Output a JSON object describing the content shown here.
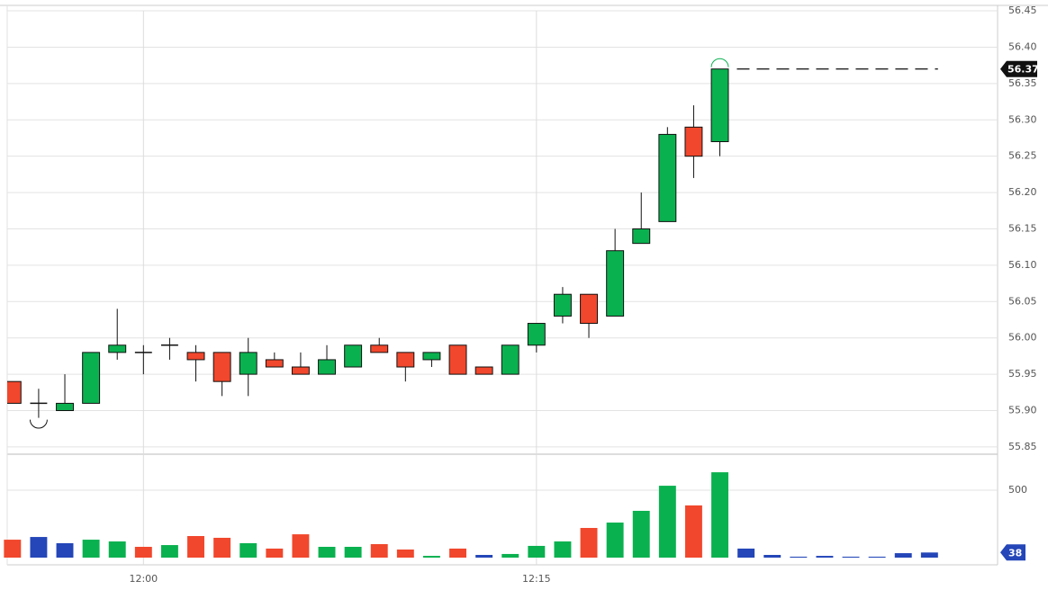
{
  "chart_data": {
    "type": "candlestick",
    "grid": true,
    "xlim": [
      -0.2,
      37.6
    ],
    "xticks": [
      {
        "value": 5,
        "label": "12:00"
      },
      {
        "value": 20,
        "label": "12:15"
      }
    ],
    "ylim": [
      55.84,
      56.455
    ],
    "yticks": [
      55.85,
      {
        "value": 55.9,
        "label": "55.90"
      },
      55.95,
      {
        "value": 56.0,
        "label": "56.00"
      },
      56.05,
      {
        "value": 56.1,
        "label": "56.10"
      },
      56.15,
      {
        "value": 56.2,
        "label": "56.20"
      },
      56.25,
      {
        "value": 56.3,
        "label": "56.30"
      },
      56.35,
      {
        "value": 56.4,
        "label": "56.40"
      },
      56.45
    ],
    "candles": {
      "up_color": "#0ab14f",
      "down_color": "#f1472c",
      "x": [
        0,
        1,
        2,
        3,
        4,
        5,
        6,
        7,
        8,
        9,
        10,
        11,
        12,
        13,
        14,
        15,
        16,
        17,
        18,
        19,
        20,
        21,
        22,
        23,
        24,
        25,
        26,
        27
      ],
      "open": [
        55.94,
        55.91,
        55.9,
        55.91,
        55.98,
        55.98,
        55.99,
        55.98,
        55.98,
        55.95,
        55.97,
        55.96,
        55.95,
        55.96,
        55.99,
        55.98,
        55.97,
        55.99,
        55.96,
        55.95,
        55.99,
        56.03,
        56.06,
        56.03,
        56.13,
        56.16,
        56.29,
        56.27
      ],
      "high": [
        55.94,
        55.93,
        55.95,
        55.98,
        56.04,
        55.99,
        56.0,
        55.99,
        55.98,
        56.0,
        55.98,
        55.98,
        55.99,
        55.99,
        56.0,
        55.98,
        55.98,
        55.99,
        55.96,
        55.99,
        56.02,
        56.07,
        56.06,
        56.15,
        56.2,
        56.29,
        56.32,
        56.37
      ],
      "low": [
        55.91,
        55.89,
        55.9,
        55.91,
        55.97,
        55.95,
        55.97,
        55.94,
        55.92,
        55.92,
        55.96,
        55.95,
        55.95,
        55.96,
        55.98,
        55.94,
        55.96,
        55.95,
        55.95,
        55.95,
        55.98,
        56.02,
        56.0,
        56.03,
        56.13,
        56.16,
        56.22,
        56.25
      ],
      "close": [
        55.91,
        55.91,
        55.91,
        55.98,
        55.99,
        55.98,
        55.99,
        55.97,
        55.94,
        55.98,
        55.96,
        55.95,
        55.97,
        55.99,
        55.98,
        55.96,
        55.98,
        55.95,
        55.95,
        55.99,
        56.02,
        56.06,
        56.02,
        56.12,
        56.15,
        56.28,
        56.25,
        56.37
      ]
    },
    "volume": {
      "ylim": [
        0,
        767
      ],
      "yticks": [
        500
      ],
      "x": [
        0,
        1,
        2,
        3,
        4,
        5,
        6,
        7,
        8,
        9,
        10,
        11,
        12,
        13,
        14,
        15,
        16,
        17,
        18,
        19,
        20,
        21,
        22,
        23,
        24,
        25,
        26,
        27,
        28,
        29,
        30,
        31,
        32,
        33,
        34,
        35
      ],
      "values": [
        133,
        153,
        107,
        133,
        120,
        80,
        93,
        160,
        147,
        107,
        67,
        173,
        80,
        80,
        100,
        60,
        13,
        67,
        20,
        27,
        87,
        120,
        220,
        260,
        347,
        533,
        387,
        633,
        67,
        20,
        7,
        13,
        7,
        7,
        33,
        38
      ],
      "colors": [
        "#f1472c",
        "#2446b8",
        "#2446b8",
        "#0ab14f",
        "#0ab14f",
        "#f1472c",
        "#0ab14f",
        "#f1472c",
        "#f1472c",
        "#0ab14f",
        "#f1472c",
        "#f1472c",
        "#0ab14f",
        "#0ab14f",
        "#f1472c",
        "#f1472c",
        "#0ab14f",
        "#f1472c",
        "#2446b8",
        "#0ab14f",
        "#0ab14f",
        "#0ab14f",
        "#f1472c",
        "#0ab14f",
        "#0ab14f",
        "#0ab14f",
        "#f1472c",
        "#0ab14f",
        "#2446b8",
        "#2446b8",
        "#2446b8",
        "#2446b8",
        "#2446b8",
        "#2446b8",
        "#2446b8",
        "#2446b8"
      ]
    }
  }
}
